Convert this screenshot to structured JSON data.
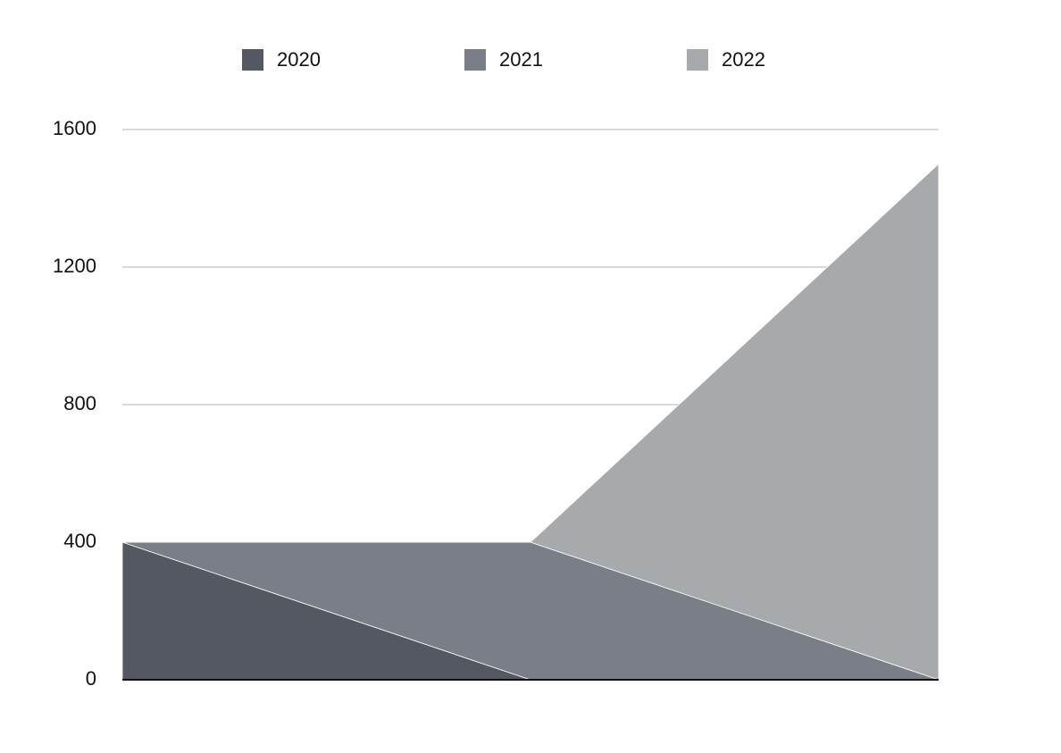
{
  "chart_data": {
    "type": "area",
    "stacked": true,
    "categories": [
      null,
      null,
      null
    ],
    "series": [
      {
        "name": "2020",
        "color": "#545861",
        "values": [
          400,
          0,
          0
        ]
      },
      {
        "name": "2021",
        "color": "#7a7f87",
        "values": [
          0,
          400,
          0
        ]
      },
      {
        "name": "2022",
        "color": "#a7aaad",
        "values": [
          0,
          0,
          1500
        ]
      }
    ],
    "ylim": [
      0,
      1600
    ],
    "yticks": [
      0,
      400,
      800,
      1200,
      1600
    ],
    "grid": true,
    "legend": "top"
  }
}
